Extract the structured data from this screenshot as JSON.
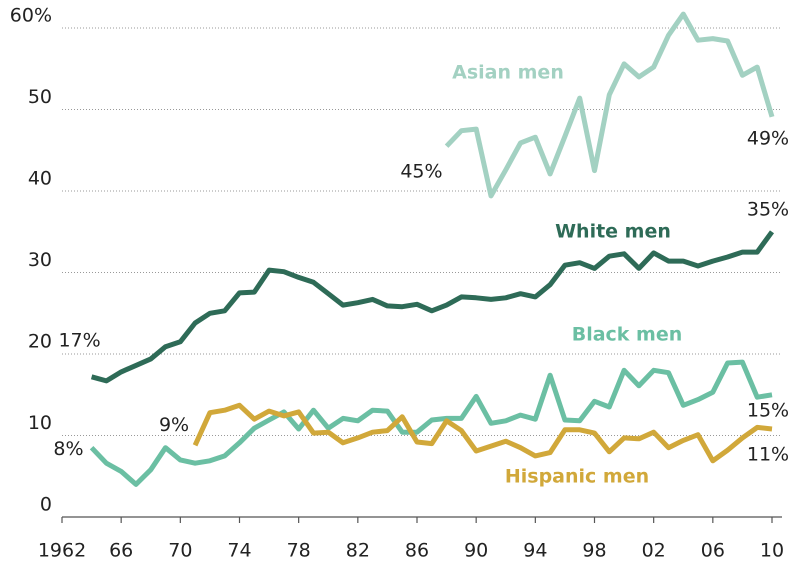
{
  "chart_data": {
    "type": "line",
    "x": [
      1964,
      1965,
      1966,
      1967,
      1968,
      1969,
      1970,
      1971,
      1972,
      1973,
      1974,
      1975,
      1976,
      1977,
      1978,
      1979,
      1980,
      1981,
      1982,
      1983,
      1984,
      1985,
      1986,
      1987,
      1988,
      1989,
      1990,
      1991,
      1992,
      1993,
      1994,
      1995,
      1996,
      1997,
      1998,
      1999,
      2000,
      2001,
      2002,
      2003,
      2004,
      2005,
      2006,
      2007,
      2008,
      2009,
      2010
    ],
    "xlim": [
      1962,
      2010
    ],
    "xticks": [
      {
        "value": 1962,
        "label": "1962"
      },
      {
        "value": 1966,
        "label": "66"
      },
      {
        "value": 1970,
        "label": "70"
      },
      {
        "value": 1974,
        "label": "74"
      },
      {
        "value": 1978,
        "label": "78"
      },
      {
        "value": 1982,
        "label": "82"
      },
      {
        "value": 1986,
        "label": "86"
      },
      {
        "value": 1990,
        "label": "90"
      },
      {
        "value": 1994,
        "label": "94"
      },
      {
        "value": 1998,
        "label": "98"
      },
      {
        "value": 2002,
        "label": "02"
      },
      {
        "value": 2006,
        "label": "06"
      },
      {
        "value": 2010,
        "label": "10"
      }
    ],
    "ylim": [
      0,
      60
    ],
    "yticks": [
      0,
      10,
      20,
      30,
      40,
      50,
      {
        "value": 60,
        "label": "60%"
      }
    ],
    "grid": true,
    "series": [
      {
        "name": "Asian men",
        "color": "#a3d1c2",
        "values": [
          null,
          null,
          null,
          null,
          null,
          null,
          null,
          null,
          null,
          null,
          null,
          null,
          null,
          null,
          null,
          null,
          null,
          null,
          null,
          null,
          null,
          null,
          null,
          null,
          45.5,
          47.4,
          47.6,
          39.4,
          42.6,
          45.9,
          46.6,
          42.1,
          46.7,
          51.4,
          42.5,
          51.8,
          55.6,
          54.0,
          55.2,
          59.1,
          61.7,
          58.5,
          58.7,
          58.4,
          54.2,
          55.2,
          49.1
        ],
        "value_labels": [
          null,
          null,
          null,
          null,
          null,
          null,
          null,
          null,
          null,
          null,
          null,
          null,
          null,
          null,
          null,
          null,
          null,
          null,
          null,
          null,
          null,
          null,
          null,
          null,
          "45%",
          null,
          null,
          null,
          null,
          null,
          null,
          null,
          null,
          null,
          null,
          null,
          null,
          null,
          null,
          null,
          null,
          null,
          null,
          null,
          null,
          null,
          "49%"
        ]
      },
      {
        "name": "White men",
        "color": "#2e6b57",
        "values": [
          17.2,
          16.7,
          17.8,
          18.6,
          19.4,
          20.9,
          21.5,
          23.8,
          25.0,
          25.3,
          27.5,
          27.6,
          30.3,
          30.1,
          29.4,
          28.8,
          27.4,
          26.0,
          26.3,
          26.7,
          25.9,
          25.8,
          26.1,
          25.3,
          26.0,
          27.0,
          26.9,
          26.7,
          26.9,
          27.4,
          27.0,
          28.5,
          30.9,
          31.2,
          30.5,
          32.0,
          32.3,
          30.5,
          32.4,
          31.4,
          31.4,
          30.8,
          31.4,
          31.9,
          32.5,
          32.5,
          35.0
        ],
        "value_labels": [
          "17%",
          null,
          null,
          null,
          null,
          null,
          null,
          null,
          null,
          null,
          null,
          null,
          null,
          null,
          null,
          null,
          null,
          null,
          null,
          null,
          null,
          null,
          null,
          null,
          null,
          null,
          null,
          null,
          null,
          null,
          null,
          null,
          null,
          null,
          null,
          null,
          null,
          null,
          null,
          null,
          null,
          null,
          null,
          null,
          null,
          null,
          "35%"
        ]
      },
      {
        "name": "Black men",
        "color": "#6bbfa3",
        "values": [
          8.5,
          6.6,
          5.6,
          4.0,
          5.8,
          8.5,
          7.0,
          6.6,
          6.9,
          7.5,
          9.1,
          10.9,
          11.9,
          12.9,
          10.8,
          13.1,
          10.9,
          12.1,
          11.8,
          13.1,
          13.0,
          10.4,
          10.4,
          11.9,
          12.1,
          12.1,
          14.8,
          11.5,
          11.8,
          12.5,
          12.0,
          17.4,
          11.9,
          11.8,
          14.2,
          13.5,
          18.0,
          16.1,
          18.0,
          17.7,
          13.7,
          14.4,
          15.3,
          18.9,
          19.0,
          14.7,
          15.0
        ],
        "value_labels": [
          "8%",
          null,
          null,
          null,
          null,
          null,
          null,
          null,
          null,
          null,
          null,
          null,
          null,
          null,
          null,
          null,
          null,
          null,
          null,
          null,
          null,
          null,
          null,
          null,
          null,
          null,
          null,
          null,
          null,
          null,
          null,
          null,
          null,
          null,
          null,
          null,
          null,
          null,
          null,
          null,
          null,
          null,
          null,
          null,
          null,
          null,
          "15%"
        ]
      },
      {
        "name": "Hispanic men",
        "color": "#d1a83a",
        "values": [
          null,
          null,
          null,
          null,
          null,
          null,
          null,
          8.8,
          12.8,
          13.1,
          13.7,
          12.0,
          13.0,
          12.4,
          12.9,
          10.3,
          10.4,
          9.1,
          9.7,
          10.4,
          10.6,
          12.3,
          9.2,
          9.0,
          11.8,
          10.6,
          8.1,
          8.7,
          9.3,
          8.5,
          7.5,
          7.9,
          10.7,
          10.7,
          10.3,
          8.0,
          9.7,
          9.6,
          10.4,
          8.5,
          9.4,
          10.1,
          6.9,
          8.2,
          9.7,
          11.0,
          10.8
        ],
        "value_labels": [
          null,
          null,
          null,
          null,
          null,
          null,
          null,
          "9%",
          null,
          null,
          null,
          null,
          null,
          null,
          null,
          null,
          null,
          null,
          null,
          null,
          null,
          null,
          null,
          null,
          null,
          null,
          null,
          null,
          null,
          null,
          null,
          null,
          null,
          null,
          null,
          null,
          null,
          null,
          null,
          null,
          null,
          null,
          null,
          null,
          null,
          null,
          "11%"
        ]
      }
    ]
  }
}
